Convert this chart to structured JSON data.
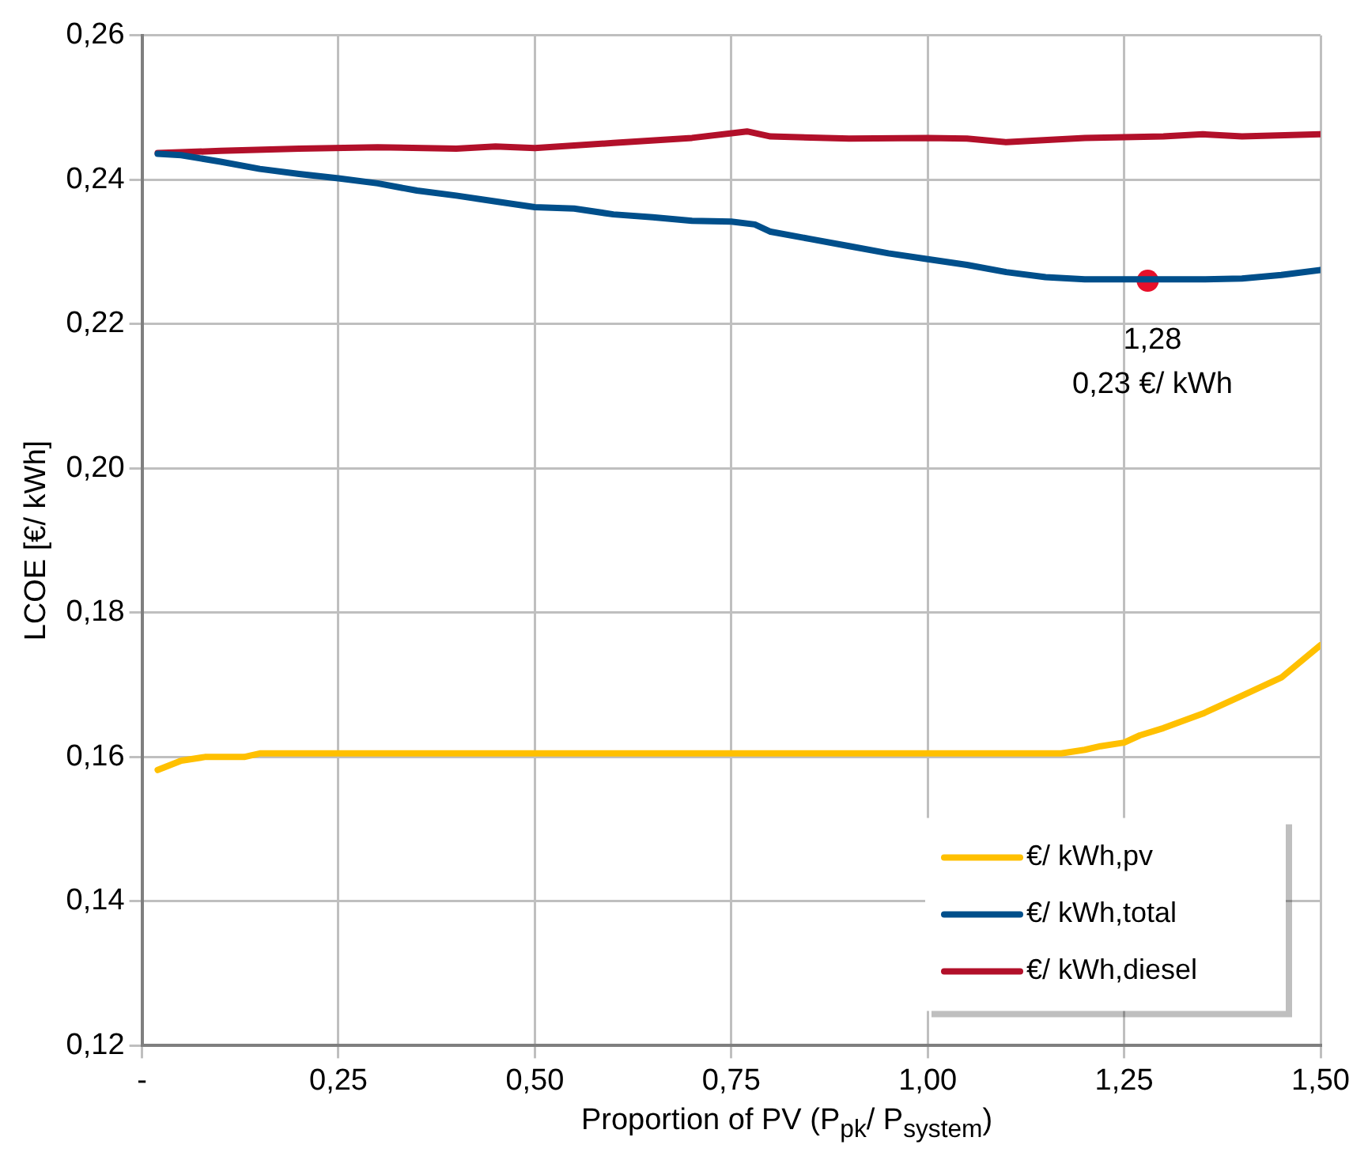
{
  "chart_data": {
    "type": "line",
    "xlabel": "Proportion of PV (P$_{pk}$/ P$_{system}$)",
    "ylabel": "LCOE [€/ kWh]",
    "xlim": [
      0,
      1.5
    ],
    "xticks": [
      {
        "value": 0,
        "label": "-"
      },
      {
        "value": 0.25,
        "label": "0,25"
      },
      {
        "value": 0.5,
        "label": "0,50"
      },
      {
        "value": 0.75,
        "label": "0,75"
      },
      {
        "value": 1,
        "label": "1,00"
      },
      {
        "value": 1.25,
        "label": "1,25"
      },
      {
        "value": 1.5,
        "label": "1,50"
      }
    ],
    "ylim": [
      0.12,
      0.26
    ],
    "yticks": [
      {
        "value": 0.12,
        "label": "0,12"
      },
      {
        "value": 0.14,
        "label": "0,14"
      },
      {
        "value": 0.16,
        "label": "0,16"
      },
      {
        "value": 0.18,
        "label": "0,18"
      },
      {
        "value": 0.2,
        "label": "0,20"
      },
      {
        "value": 0.22,
        "label": "0,22"
      },
      {
        "value": 0.24,
        "label": "0,24"
      },
      {
        "value": 0.26,
        "label": "0,26"
      }
    ],
    "grid": true,
    "legend": "bottom right",
    "marker": "none",
    "line_style": "solid",
    "series": [
      {
        "name": "€/ kWh,pv",
        "color": "#ffc000",
        "x": [
          0.02,
          0.05,
          0.08,
          0.13,
          0.15,
          0.5,
          1.0,
          1.17,
          1.2,
          1.22,
          1.25,
          1.27,
          1.3,
          1.35,
          1.4,
          1.45,
          1.5
        ],
        "values": [
          0.1582,
          0.1595,
          0.16,
          0.16,
          0.1605,
          0.1605,
          0.1605,
          0.1605,
          0.161,
          0.1615,
          0.162,
          0.163,
          0.164,
          0.166,
          0.1685,
          0.171,
          0.1755
        ]
      },
      {
        "name": "€/ kWh,total",
        "color": "#004f8b",
        "x": [
          0.02,
          0.05,
          0.1,
          0.15,
          0.2,
          0.25,
          0.3,
          0.35,
          0.4,
          0.45,
          0.5,
          0.55,
          0.6,
          0.65,
          0.7,
          0.75,
          0.78,
          0.8,
          0.85,
          0.9,
          0.95,
          1.0,
          1.05,
          1.1,
          1.15,
          1.2,
          1.25,
          1.28,
          1.3,
          1.35,
          1.4,
          1.45,
          1.5
        ],
        "values": [
          0.2436,
          0.2434,
          0.2425,
          0.2415,
          0.2408,
          0.2402,
          0.2395,
          0.2385,
          0.2378,
          0.237,
          0.2362,
          0.236,
          0.2352,
          0.2348,
          0.2343,
          0.2342,
          0.2338,
          0.2328,
          0.2318,
          0.2308,
          0.2298,
          0.229,
          0.2282,
          0.2272,
          0.2265,
          0.2262,
          0.2262,
          0.2262,
          0.2262,
          0.2262,
          0.2263,
          0.2268,
          0.2275
        ]
      },
      {
        "name": "€/ kWh,diesel",
        "color": "#b2102a",
        "x": [
          0.02,
          0.1,
          0.2,
          0.3,
          0.4,
          0.45,
          0.5,
          0.6,
          0.7,
          0.77,
          0.8,
          0.9,
          1.0,
          1.05,
          1.1,
          1.2,
          1.3,
          1.35,
          1.4,
          1.5
        ],
        "values": [
          0.2437,
          0.244,
          0.2443,
          0.2445,
          0.2443,
          0.2446,
          0.2444,
          0.2451,
          0.2458,
          0.2467,
          0.246,
          0.2457,
          0.2458,
          0.2457,
          0.2452,
          0.2458,
          0.246,
          0.2463,
          0.246,
          0.2463
        ]
      },
      {
        "type": "scatter",
        "marker": "circle",
        "color": "#e8102a",
        "x": [
          1.28
        ],
        "values": [
          0.226
        ]
      }
    ],
    "annotations": [
      {
        "text": "1,28\n0,23 €/ kWh",
        "x": 1.28,
        "y": 0.226
      }
    ]
  }
}
